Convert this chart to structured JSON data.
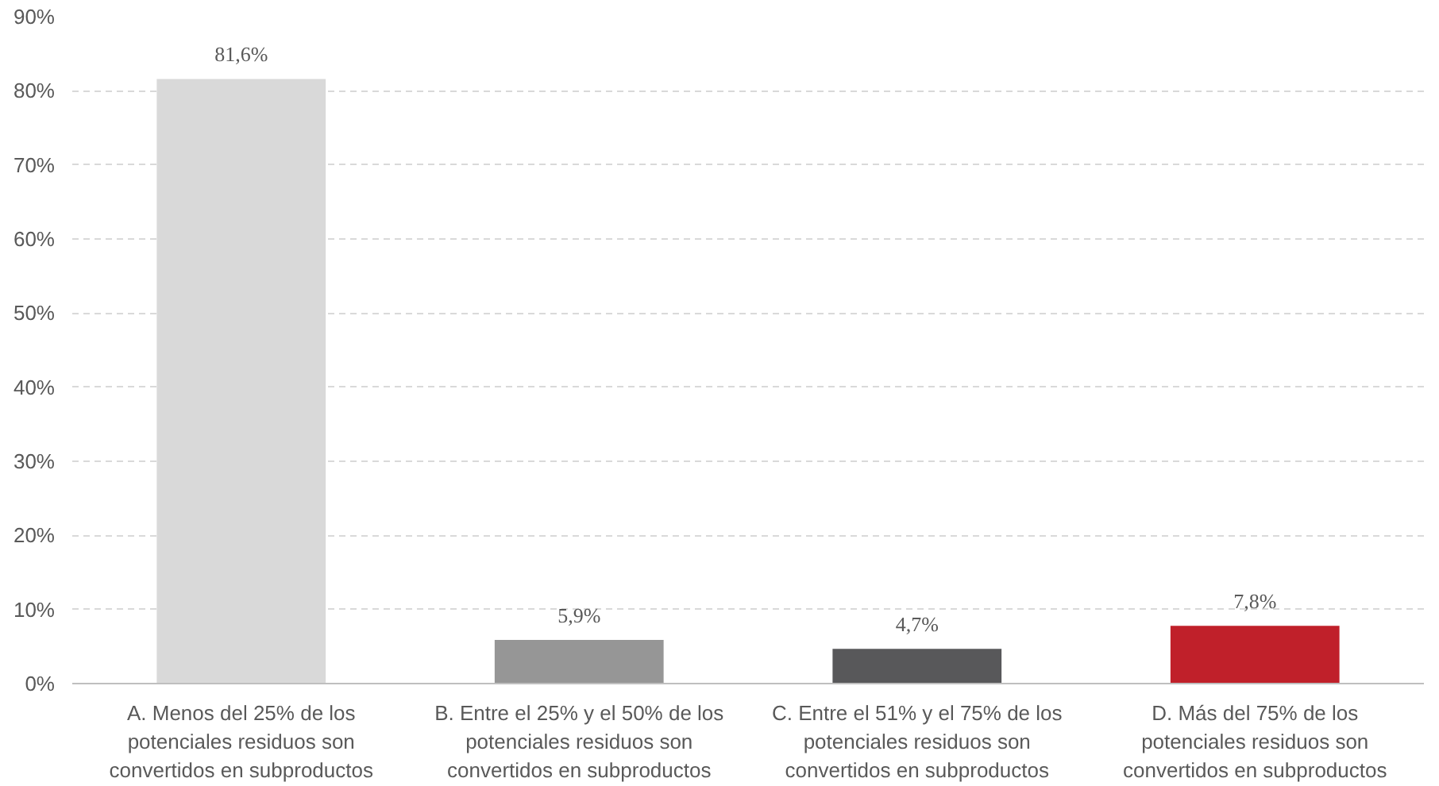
{
  "chart_data": {
    "type": "bar",
    "categories": [
      "A. Menos del 25% de los\npotenciales residuos son\nconvertidos en subproductos",
      "B. Entre el 25% y el 50% de los\npotenciales residuos son\nconvertidos en subproductos",
      "C. Entre el 51% y el 75% de los\npotenciales residuos son\nconvertidos en subproductos",
      "D. Más del 75% de los\npotenciales residuos son\nconvertidos en subproductos"
    ],
    "values": [
      81.6,
      5.9,
      4.7,
      7.8
    ],
    "colors": [
      "#d9d9d9",
      "#969696",
      "#58585a",
      "#c0202a"
    ],
    "value_labels": [
      "81,6%",
      "5,9%",
      "4,7%",
      "7,8%"
    ],
    "ylim": [
      0,
      90
    ],
    "yticks": [
      {
        "value": 0,
        "label": "0%"
      },
      {
        "value": 10,
        "label": "10%"
      },
      {
        "value": 20,
        "label": "20%"
      },
      {
        "value": 30,
        "label": "30%"
      },
      {
        "value": 40,
        "label": "40%"
      },
      {
        "value": 50,
        "label": "50%"
      },
      {
        "value": 60,
        "label": "60%"
      },
      {
        "value": 70,
        "label": "70%"
      },
      {
        "value": 80,
        "label": "80%"
      },
      {
        "value": 90,
        "label": "90%"
      }
    ],
    "grid": "y"
  }
}
